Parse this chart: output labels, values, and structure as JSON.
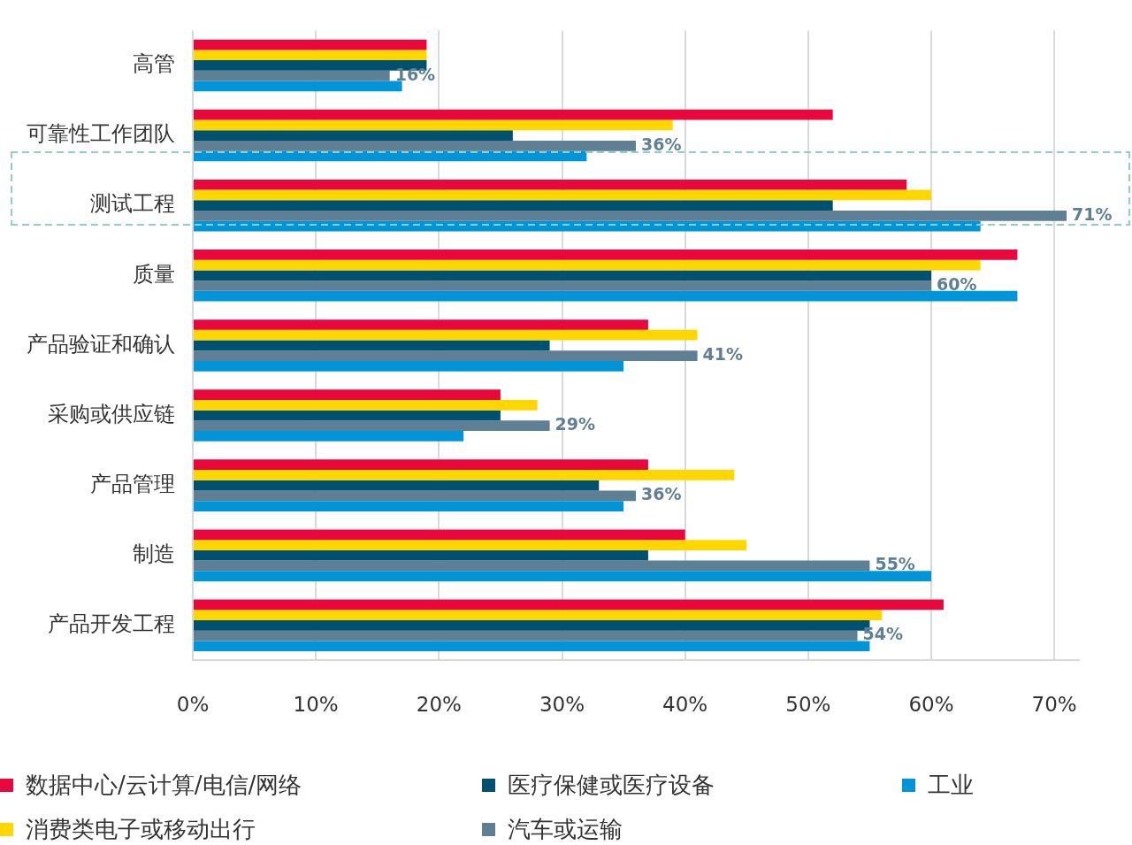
{
  "chart_data": {
    "type": "bar",
    "orientation": "horizontal",
    "categories": [
      "高管",
      "可靠性工作团队",
      "测试工程",
      "质量",
      "产品验证和确认",
      "采购或供应链",
      "产品管理",
      "制造",
      "产品开发工程"
    ],
    "series": [
      {
        "name": "数据中心/云计算/电信/网络",
        "color": "#e8083e",
        "values": [
          19,
          52,
          58,
          67,
          37,
          25,
          37,
          40,
          61
        ]
      },
      {
        "name": "消费类电子或移动出行",
        "color": "#ffd700",
        "values": [
          19,
          39,
          60,
          64,
          41,
          28,
          44,
          45,
          56
        ]
      },
      {
        "name": "医疗保健或医疗设备",
        "color": "#005070",
        "values": [
          19,
          26,
          52,
          60,
          29,
          25,
          33,
          37,
          55
        ]
      },
      {
        "name": "汽车或运输",
        "color": "#5f7f94",
        "values": [
          16,
          36,
          71,
          60,
          41,
          29,
          36,
          55,
          54
        ],
        "value_labels": [
          "16%",
          "36%",
          "71%",
          "60%",
          "41%",
          "29%",
          "36%",
          "55%",
          "54%"
        ]
      },
      {
        "name": "工业",
        "color": "#0095d9",
        "values": [
          17,
          32,
          64,
          67,
          35,
          22,
          35,
          60,
          55
        ]
      }
    ],
    "xlim": [
      0,
      72
    ],
    "xticks": [
      {
        "value": 0,
        "label": "0%"
      },
      {
        "value": 10,
        "label": "10%"
      },
      {
        "value": 20,
        "label": "20%"
      },
      {
        "value": 30,
        "label": "30%"
      },
      {
        "value": 40,
        "label": "40%"
      },
      {
        "value": 50,
        "label": "50%"
      },
      {
        "value": 60,
        "label": "60%"
      },
      {
        "value": 70,
        "label": "70%"
      }
    ],
    "grid": "x",
    "legend": "bottom"
  }
}
